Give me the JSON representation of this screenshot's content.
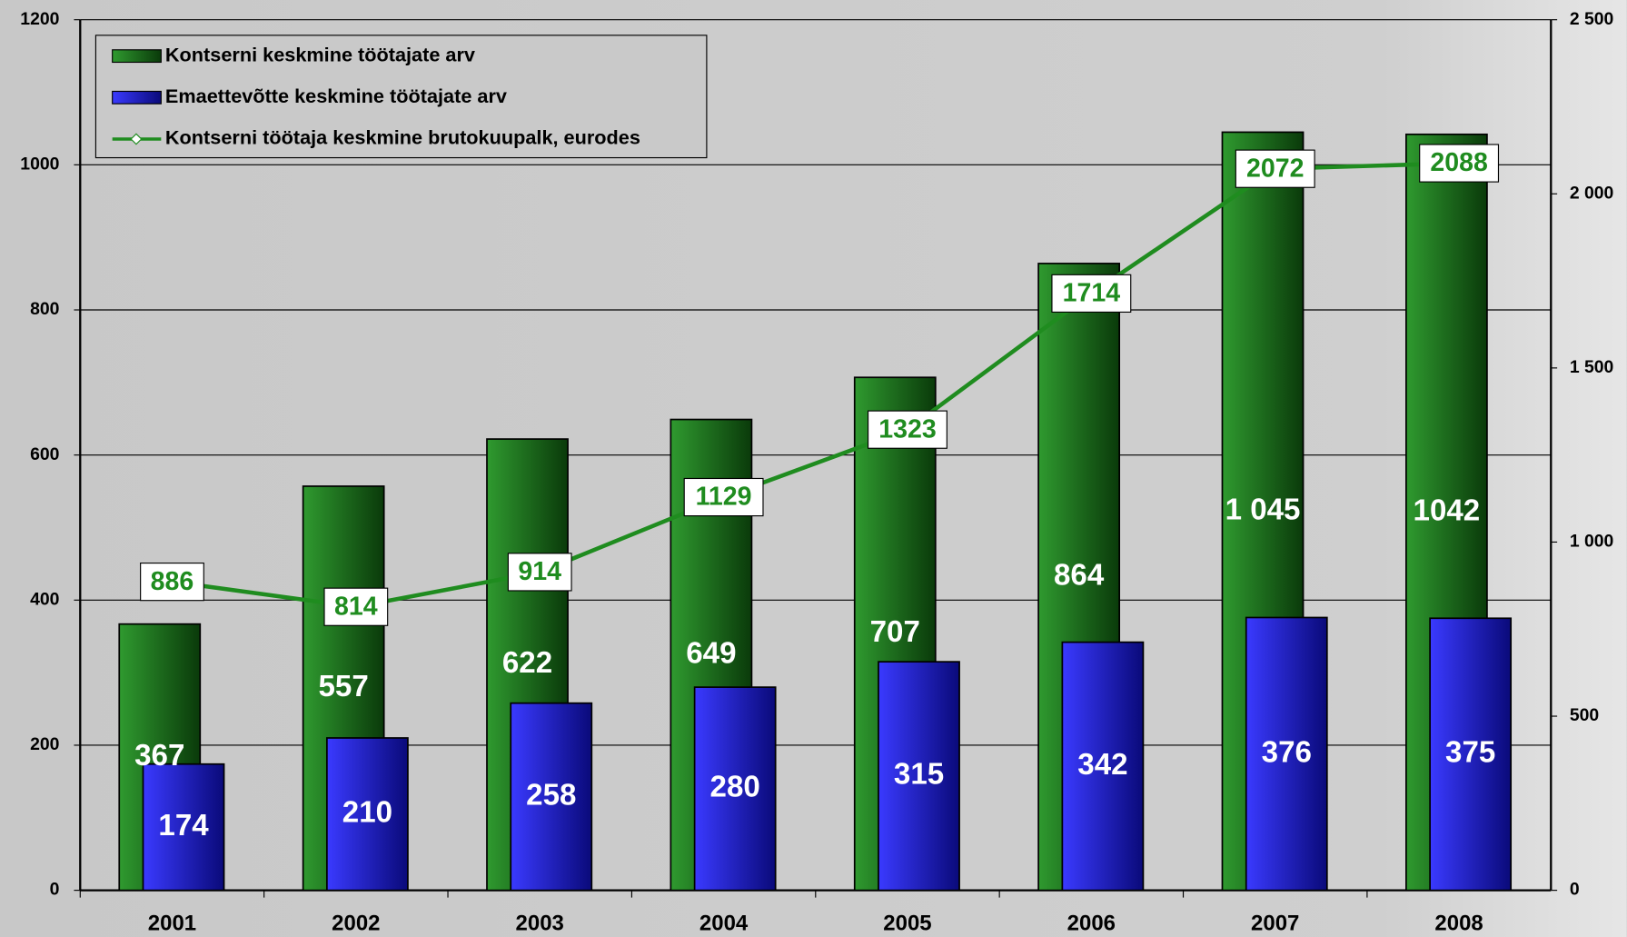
{
  "chart_data": {
    "type": "bar",
    "categories": [
      "2001",
      "2002",
      "2003",
      "2004",
      "2005",
      "2006",
      "2007",
      "2008"
    ],
    "series": [
      {
        "name": "Kontserni keskmine töötajate arv",
        "type": "bar",
        "color": "#1f7a1f",
        "values": [
          367,
          557,
          622,
          649,
          707,
          864,
          1045,
          1042
        ],
        "value_labels": [
          "367",
          "557",
          "622",
          "649",
          "707",
          "864",
          "1 045",
          "1042"
        ]
      },
      {
        "name": "Emaettevõtte keskmine töötajate arv",
        "type": "bar",
        "color": "#1c1ccc",
        "values": [
          174,
          210,
          258,
          280,
          315,
          342,
          376,
          375
        ]
      },
      {
        "name": "Kontserni töötaja keskmine brutokuupalk, eurodes",
        "type": "line",
        "axis": "y2",
        "color": "#1f8c1f",
        "values": [
          886,
          814,
          914,
          1129,
          1323,
          1714,
          2072,
          2088
        ]
      }
    ],
    "ylim": [
      0,
      1200
    ],
    "yticks": [
      0,
      200,
      400,
      600,
      800,
      1000,
      1200
    ],
    "y2lim": [
      0,
      2500
    ],
    "y2ticks": [
      0,
      500,
      {
        "value": 1000,
        "label": "1 000"
      },
      {
        "value": 1500,
        "label": "1 500"
      },
      {
        "value": 2000,
        "label": "2 000"
      },
      {
        "value": 2500,
        "label": "2 500"
      }
    ],
    "grid": true
  }
}
